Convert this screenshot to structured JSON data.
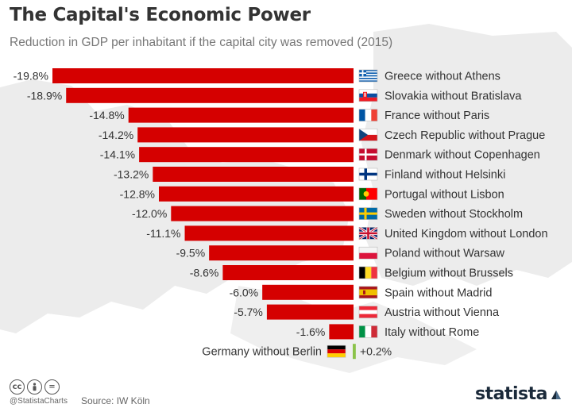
{
  "header": {
    "title": "The Capital's Economic Power",
    "subtitle": "Reduction in GDP per inhabitant if the capital city was removed (2015)"
  },
  "footer": {
    "cc_icons": [
      "cc-icon",
      "person-icon",
      "equals-icon"
    ],
    "handle": "@StatistaCharts",
    "source": "Source: IW Köln",
    "brand": "statista"
  },
  "colors": {
    "bar": "#d50000",
    "positive_bar": "#8bc34a",
    "text": "#333333"
  },
  "chart_data": {
    "type": "bar",
    "orientation": "horizontal",
    "title": "The Capital's Economic Power",
    "subtitle": "Reduction in GDP per inhabitant if the capital city was removed (2015)",
    "unit": "%",
    "categories": [
      "Greece without Athens",
      "Slovakia without Bratislava",
      "France without Paris",
      "Czech Republic without Prague",
      "Denmark without Copenhagen",
      "Finland without Helsinki",
      "Portugal without Lisbon",
      "Sweden without Stockholm",
      "United Kingdom without London",
      "Poland without Warsaw",
      "Belgium without Brussels",
      "Spain without Madrid",
      "Austria without Vienna",
      "Italy without Rome",
      "Germany without Berlin"
    ],
    "values": [
      -19.8,
      -18.9,
      -14.8,
      -14.2,
      -14.1,
      -13.2,
      -12.8,
      -12.0,
      -11.1,
      -9.5,
      -8.6,
      -6.0,
      -5.7,
      -1.6,
      0.2
    ],
    "value_labels": [
      "-19.8%",
      "-18.9%",
      "-14.8%",
      "-14.2%",
      "-14.1%",
      "-13.2%",
      "-12.8%",
      "-12.0%",
      "-11.1%",
      "-9.5%",
      "-8.6%",
      "-6.0%",
      "-5.7%",
      "-1.6%",
      "+0.2%"
    ],
    "flags": [
      "greece",
      "slovakia",
      "france",
      "czech-republic",
      "denmark",
      "finland",
      "portugal",
      "sweden",
      "united-kingdom",
      "poland",
      "belgium",
      "spain",
      "austria",
      "italy",
      "germany"
    ],
    "xlim": [
      -20,
      0.5
    ],
    "grid": false,
    "legend": "none"
  }
}
